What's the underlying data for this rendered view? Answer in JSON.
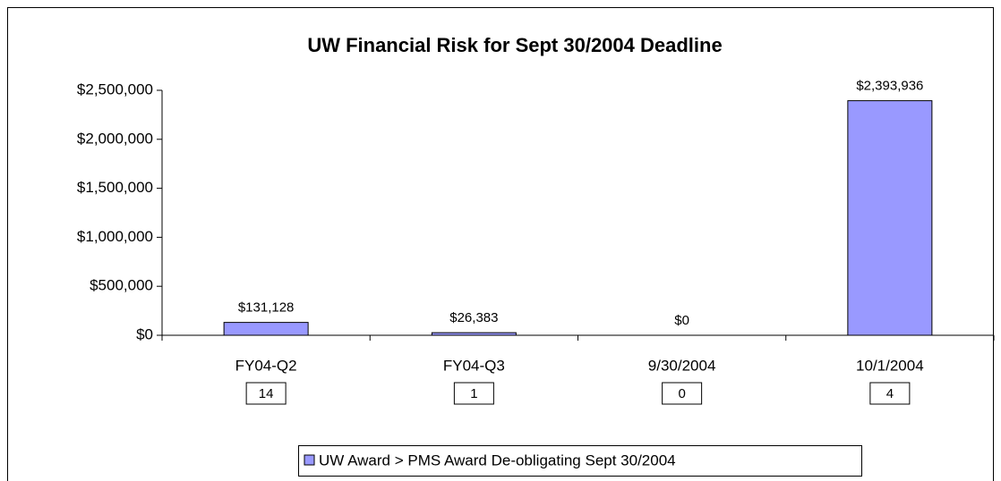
{
  "chart_data": {
    "type": "bar",
    "title": "UW Financial Risk for Sept 30/2004 Deadline",
    "categories": [
      "FY04-Q2",
      "FY04-Q3",
      "9/30/2004",
      "10/1/2004"
    ],
    "counts": [
      14,
      1,
      0,
      4
    ],
    "series": [
      {
        "name": "UW Award > PMS Award De-obligating Sept 30/2004",
        "color": "#9999ff",
        "values": [
          131128,
          26383,
          0,
          2393936
        ],
        "value_labels": [
          "$131,128",
          "$26,383",
          "$0",
          "$2,393,936"
        ]
      }
    ],
    "ylim": [
      0,
      2500000
    ],
    "yticks": [
      {
        "value": 0,
        "label": "$0"
      },
      {
        "value": 500000,
        "label": "$500,000"
      },
      {
        "value": 1000000,
        "label": "$1,000,000"
      },
      {
        "value": 1500000,
        "label": "$1,500,000"
      },
      {
        "value": 2000000,
        "label": "$2,000,000"
      },
      {
        "value": 2500000,
        "label": "$2,500,000"
      }
    ],
    "grid": false,
    "legend": "bottom"
  }
}
